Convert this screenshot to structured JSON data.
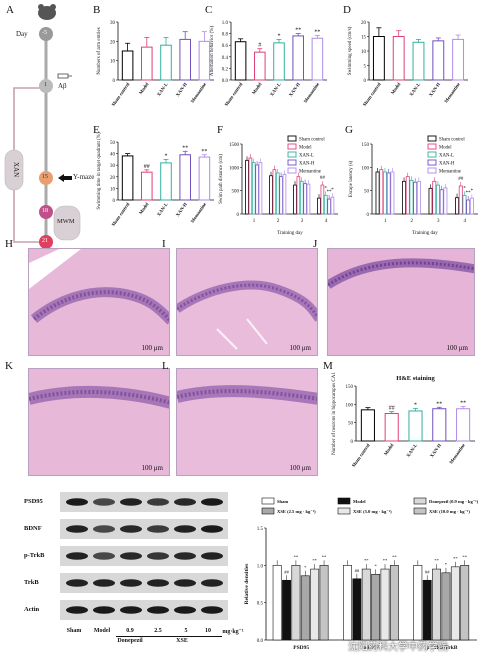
{
  "panels": {
    "A": "A",
    "B": "B",
    "C": "C",
    "D": "D",
    "E": "E",
    "F": "F",
    "G": "G",
    "H": "H",
    "I": "I",
    "J": "J",
    "K": "K",
    "L": "L",
    "M": "M"
  },
  "timeline": {
    "day_label": "Day",
    "nodes": [
      "-5",
      "1",
      "15",
      "18",
      "21"
    ],
    "abeta": "Aβ",
    "xan": "XAN",
    "ymaze": "Y-maze",
    "mwm": "MWM"
  },
  "groups": [
    "Sham control",
    "Model",
    "XAN-L",
    "XAN-H",
    "Memantine"
  ],
  "groups_m": [
    "Sham control",
    "Model",
    "XAN-L",
    "XAN-H",
    "Memantine"
  ],
  "colors": [
    "#000000",
    "#e0407a",
    "#30b0a0",
    "#7050c0",
    "#b08ae8"
  ],
  "chart_data": [
    {
      "panel": "B",
      "type": "bar",
      "ylabel": "Numbers of arm entries",
      "ylim": [
        0,
        30
      ],
      "ticks": [
        0,
        10,
        20,
        30
      ],
      "values": [
        15,
        17,
        18,
        21,
        20
      ],
      "errors": [
        4,
        5,
        4,
        4,
        5
      ],
      "sig": [
        "",
        "",
        "",
        "",
        ""
      ]
    },
    {
      "panel": "C",
      "type": "bar",
      "ylabel": "Alternation behavior (%)",
      "ylim": [
        0,
        1.0
      ],
      "ticks": [
        0.0,
        0.2,
        0.4,
        0.6,
        0.8,
        1.0
      ],
      "values": [
        0.66,
        0.48,
        0.64,
        0.76,
        0.72
      ],
      "errors": [
        0.05,
        0.06,
        0.06,
        0.04,
        0.05
      ],
      "sig": [
        "",
        "#",
        "*",
        "**",
        "**"
      ]
    },
    {
      "panel": "D",
      "type": "bar",
      "ylabel": "Swimming speed (cm/s)",
      "ylim": [
        0,
        20
      ],
      "ticks": [
        0,
        5,
        10,
        15,
        20
      ],
      "values": [
        15,
        15,
        13,
        13.5,
        14
      ],
      "errors": [
        3,
        2,
        1,
        1,
        1.5
      ],
      "sig": [
        "",
        "",
        "",
        "",
        ""
      ]
    },
    {
      "panel": "E",
      "type": "bar",
      "ylabel": "Swimming time in target quadrant (%)",
      "ylim": [
        0,
        50
      ],
      "ticks": [
        0,
        10,
        20,
        30,
        40,
        50
      ],
      "values": [
        38,
        24,
        32,
        39,
        37
      ],
      "errors": [
        2,
        2,
        3,
        3,
        2
      ],
      "sig": [
        "",
        "##",
        "*",
        "**",
        "**"
      ]
    },
    {
      "panel": "F",
      "type": "bar",
      "ylabel": "Swim path distance (cm)",
      "xlabel": "Training day",
      "ylim": [
        0,
        1500
      ],
      "ticks": [
        0,
        500,
        1000,
        1500
      ],
      "categories": [
        "1",
        "2",
        "3",
        "4"
      ],
      "series": [
        {
          "name": "Sham control",
          "values": [
            1150,
            820,
            620,
            340
          ]
        },
        {
          "name": "Model",
          "values": [
            1200,
            950,
            800,
            620
          ]
        },
        {
          "name": "XAN-L",
          "values": [
            1100,
            880,
            700,
            400
          ]
        },
        {
          "name": "XAN-H",
          "values": [
            1050,
            800,
            650,
            320
          ]
        },
        {
          "name": "Memantine",
          "values": [
            1100,
            850,
            640,
            360
          ]
        }
      ],
      "sig_day4": [
        "",
        "##",
        "*",
        "**",
        "*"
      ]
    },
    {
      "panel": "G",
      "type": "bar",
      "ylabel": "Escape latency (s)",
      "xlabel": "Training day",
      "ylim": [
        0,
        150
      ],
      "ticks": [
        0,
        50,
        100,
        150
      ],
      "categories": [
        "1",
        "2",
        "3",
        "4"
      ],
      "series": [
        {
          "name": "Sham control",
          "values": [
            90,
            70,
            55,
            35
          ]
        },
        {
          "name": "Model",
          "values": [
            95,
            80,
            70,
            60
          ]
        },
        {
          "name": "XAN-L",
          "values": [
            90,
            72,
            62,
            40
          ]
        },
        {
          "name": "XAN-H",
          "values": [
            88,
            68,
            52,
            30
          ]
        },
        {
          "name": "Memantine",
          "values": [
            90,
            70,
            56,
            34
          ]
        }
      ],
      "sig_day4": [
        "",
        "##",
        "*",
        "**",
        "*"
      ]
    },
    {
      "panel": "M",
      "type": "bar",
      "title": "H&E staining",
      "ylabel": "Number of neurons in hippocampus CA1",
      "ylim": [
        0,
        150
      ],
      "ticks": [
        0,
        50,
        100,
        150
      ],
      "values": [
        85,
        75,
        82,
        88,
        88
      ],
      "errors": [
        6,
        5,
        7,
        4,
        6
      ],
      "sig": [
        "",
        "##",
        "*",
        "**",
        "**"
      ]
    },
    {
      "panel": "WB",
      "type": "bar",
      "ylabel": "Relative densities",
      "ylim": [
        0,
        1.5
      ],
      "ticks": [
        0.0,
        0.5,
        1.0,
        1.5
      ],
      "categories": [
        "PSD95",
        "BDNF",
        "p-TrkB/TrkB"
      ],
      "legend": [
        "Sham",
        "Model",
        "Donepezil (0.9 mg · kg⁻¹)",
        "XSE (2.5 mg · kg⁻¹)",
        "XSE (5.0 mg · kg⁻¹)",
        "XSE (10.0 mg · kg⁻¹)"
      ],
      "series": [
        {
          "name": "Sham",
          "values": [
            1.0,
            1.0,
            1.0
          ]
        },
        {
          "name": "Model",
          "values": [
            0.8,
            0.82,
            0.8
          ]
        },
        {
          "name": "Donepezil (0.9 mg · kg⁻¹)",
          "values": [
            1.0,
            0.95,
            0.95
          ]
        },
        {
          "name": "XSE (2.5 mg · kg⁻¹)",
          "values": [
            0.86,
            0.88,
            0.9
          ]
        },
        {
          "name": "XSE (5.0 mg · kg⁻¹)",
          "values": [
            0.95,
            0.95,
            0.98
          ]
        },
        {
          "name": "XSE (10.0 mg · kg⁻¹)",
          "values": [
            1.0,
            1.0,
            1.0
          ]
        }
      ],
      "sig_mark": [
        "",
        "##",
        "**",
        "*",
        "**",
        "**"
      ]
    }
  ],
  "histology": {
    "scale_bar": "100 μm"
  },
  "western": {
    "rows": [
      "PSD95",
      "BDNF",
      "p-TrkB",
      "TrkB",
      "Actin"
    ],
    "lanes": [
      "Sham",
      "Model",
      "0.9",
      "2.5",
      "5",
      "10"
    ],
    "unit": "mg·kg⁻¹",
    "donepezil": "Donepezil",
    "xse": "XSE"
  },
  "watermark": "沈阳药科大学中药学院"
}
